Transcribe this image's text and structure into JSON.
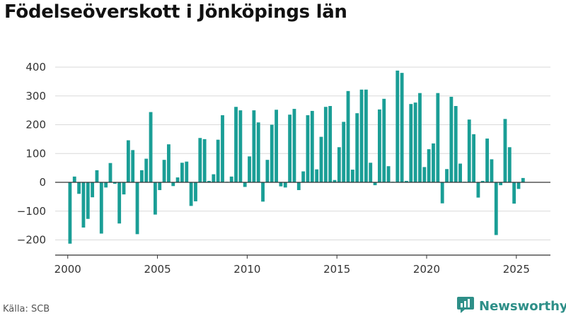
{
  "page_title": "Födelseöverskott i Jönköpings län",
  "source_text": "Källa: SCB",
  "brand": {
    "name": "Newsworthy",
    "icon": "newsworthy-logo-icon"
  },
  "colors": {
    "bar": "#1a9e96",
    "grid": "#d9d9d9",
    "zero_line": "#333333",
    "brand": "#2e8f88"
  },
  "chart_data": {
    "type": "bar",
    "title": "Födelseöverskott i Jönköpings län",
    "xlabel": "",
    "ylabel": "",
    "ylim": [
      -250,
      450
    ],
    "yticks": [
      400,
      300,
      200,
      100,
      0,
      -100,
      -200
    ],
    "ytick_labels": [
      "400",
      "300",
      "200",
      "100",
      "0",
      "−100",
      "−200"
    ],
    "xticks": [
      2000,
      2005,
      2010,
      2015,
      2020,
      2025
    ],
    "xtick_labels": [
      "2000",
      "2005",
      "2010",
      "2015",
      "2020",
      "2025"
    ],
    "xlim": [
      1999.3,
      2026.9
    ],
    "grid": true,
    "x": [
      2000.125,
      2000.375,
      2000.625,
      2000.875,
      2001.125,
      2001.375,
      2001.625,
      2001.875,
      2002.125,
      2002.375,
      2002.625,
      2002.875,
      2003.125,
      2003.375,
      2003.625,
      2003.875,
      2004.125,
      2004.375,
      2004.625,
      2004.875,
      2005.125,
      2005.375,
      2005.625,
      2005.875,
      2006.125,
      2006.375,
      2006.625,
      2006.875,
      2007.125,
      2007.375,
      2007.625,
      2007.875,
      2008.125,
      2008.375,
      2008.625,
      2008.875,
      2009.125,
      2009.375,
      2009.625,
      2009.875,
      2010.125,
      2010.375,
      2010.625,
      2010.875,
      2011.125,
      2011.375,
      2011.625,
      2011.875,
      2012.125,
      2012.375,
      2012.625,
      2012.875,
      2013.125,
      2013.375,
      2013.625,
      2013.875,
      2014.125,
      2014.375,
      2014.625,
      2014.875,
      2015.125,
      2015.375,
      2015.625,
      2015.875,
      2016.125,
      2016.375,
      2016.625,
      2016.875,
      2017.125,
      2017.375,
      2017.625,
      2017.875,
      2018.125,
      2018.375,
      2018.625,
      2018.875,
      2019.125,
      2019.375,
      2019.625,
      2019.875,
      2020.125,
      2020.375,
      2020.625,
      2020.875,
      2021.125,
      2021.375,
      2021.625,
      2021.875,
      2022.125,
      2022.375,
      2022.625,
      2022.875,
      2023.125,
      2023.375,
      2023.625,
      2023.875,
      2024.125,
      2024.375,
      2024.625,
      2024.875,
      2025.125,
      2025.375
    ],
    "values": [
      -213,
      20,
      -40,
      -157,
      -127,
      -52,
      42,
      -178,
      -18,
      67,
      -5,
      -143,
      -42,
      146,
      112,
      -180,
      42,
      82,
      244,
      -112,
      -27,
      78,
      132,
      -13,
      17,
      68,
      72,
      -82,
      -66,
      154,
      150,
      5,
      28,
      148,
      233,
      2,
      20,
      262,
      250,
      -16,
      90,
      250,
      208,
      -67,
      78,
      200,
      252,
      -14,
      -18,
      235,
      255,
      -27,
      38,
      233,
      248,
      45,
      158,
      262,
      265,
      8,
      122,
      210,
      317,
      44,
      240,
      322,
      322,
      68,
      -10,
      253,
      290,
      56,
      2,
      388,
      380,
      5,
      272,
      277,
      310,
      53,
      115,
      135,
      310,
      -73,
      46,
      297,
      265,
      65,
      2,
      218,
      167,
      -53,
      5,
      152,
      80,
      -183,
      -10,
      220,
      122,
      -74,
      -23,
      15
    ]
  }
}
